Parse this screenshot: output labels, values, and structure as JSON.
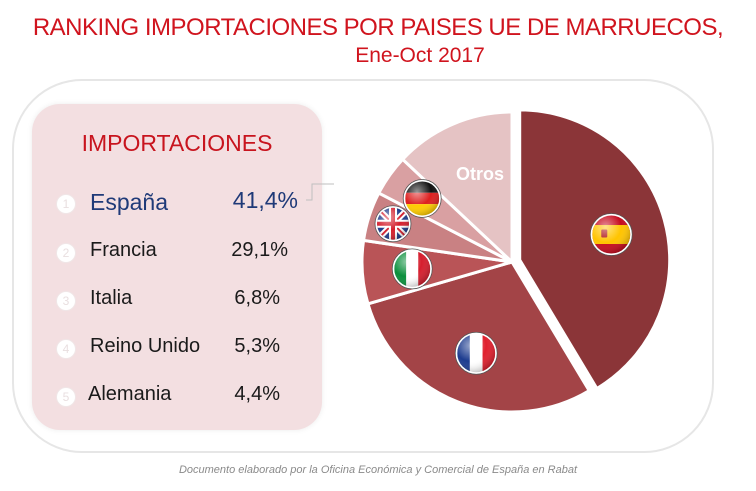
{
  "title_line1": "RANKING IMPORTACIONES POR PAISES UE DE MARRUECOS,",
  "title_line2": "Ene-Oct 2017",
  "panel": {
    "heading": "IMPORTACIONES",
    "rows": [
      {
        "num": "1",
        "country": "España",
        "pct": "41,4%"
      },
      {
        "num": "2",
        "country": "Francia",
        "pct": "29,1%"
      },
      {
        "num": "3",
        "country": "Italia",
        "pct": "6,8%"
      },
      {
        "num": "4",
        "country": "Reino Unido",
        "pct": "5,3%"
      },
      {
        "num": "5",
        "country": "Alemania",
        "pct": "4,4%"
      }
    ]
  },
  "footer": "Documento elaborado por la Oficina Económica y Comercial de España en Rabat",
  "chart_data": {
    "type": "pie",
    "slices": [
      {
        "label": "España",
        "value": 41.4,
        "color": "#8b3538",
        "icon": "spain-flag-icon"
      },
      {
        "label": "Francia",
        "value": 29.1,
        "color": "#a34447",
        "icon": "france-flag-icon"
      },
      {
        "label": "Italia",
        "value": 6.8,
        "color": "#b95457",
        "icon": "italy-flag-icon"
      },
      {
        "label": "Reino Unido",
        "value": 5.3,
        "color": "#c98183",
        "icon": "uk-flag-icon"
      },
      {
        "label": "Alemania",
        "value": 4.4,
        "color": "#d9a0a2",
        "icon": "germany-flag-icon"
      },
      {
        "label": "Otros",
        "value": 13.0,
        "color": "#e5c3c4",
        "icon": ""
      }
    ],
    "otros_label": "Otros"
  }
}
